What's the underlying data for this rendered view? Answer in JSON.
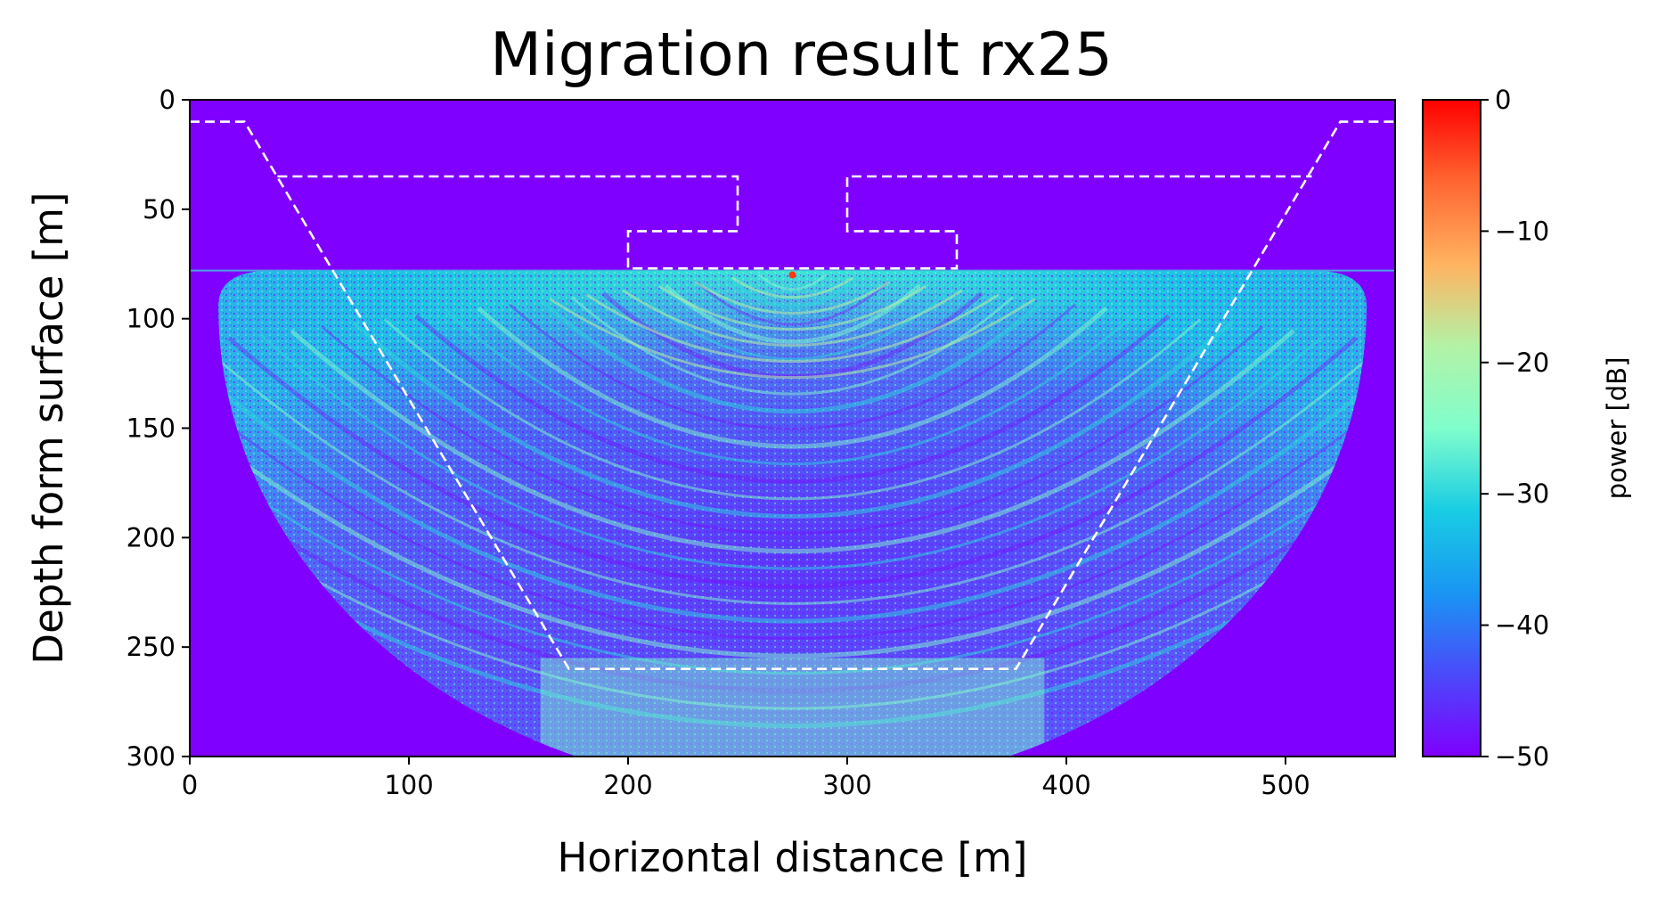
{
  "chart_data": {
    "type": "heatmap",
    "title": "Migration result rx25",
    "xlabel": "Horizontal distance [m]",
    "ylabel": "Depth form surface [m]",
    "xlim": [
      0,
      550
    ],
    "ylim": [
      300,
      0
    ],
    "y_inverted": true,
    "xticks": [
      0,
      100,
      200,
      300,
      400,
      500
    ],
    "yticks": [
      0,
      50,
      100,
      150,
      200,
      250,
      300
    ],
    "colorbar": {
      "label": "power [dB]",
      "range": [
        -50,
        0
      ],
      "ticks": [
        0,
        -10,
        -20,
        -30,
        -40,
        -50
      ],
      "tick_labels": [
        "0",
        "−10",
        "−20",
        "−30",
        "−40",
        "−50"
      ],
      "colormap": "rainbow"
    },
    "background_value_db": -50,
    "image_region": {
      "description_values": {
        "surface_depth": 78,
        "center_x": 275,
        "half_width": 262,
        "max_depth": 300
      }
    },
    "bright_point": {
      "x": 275,
      "y": 80,
      "value_db": 0
    },
    "outline": {
      "style": "white-dashed",
      "polylines": [
        {
          "name": "",
          "x": [
            0,
            25,
            173,
            377,
            525,
            550
          ],
          "y": [
            10,
            10,
            260,
            260,
            10,
            10
          ]
        },
        {
          "name": "",
          "x": [
            40,
            250,
            250,
            200,
            200,
            350,
            350,
            300,
            300,
            512
          ],
          "y": [
            35,
            35,
            60,
            60,
            77,
            77,
            60,
            60,
            35,
            35
          ]
        }
      ]
    }
  }
}
